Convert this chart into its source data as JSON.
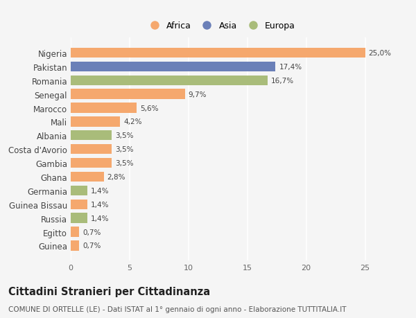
{
  "countries": [
    "Nigeria",
    "Pakistan",
    "Romania",
    "Senegal",
    "Marocco",
    "Mali",
    "Albania",
    "Costa d'Avorio",
    "Gambia",
    "Ghana",
    "Germania",
    "Guinea Bissau",
    "Russia",
    "Egitto",
    "Guinea"
  ],
  "values": [
    25.0,
    17.4,
    16.7,
    9.7,
    5.6,
    4.2,
    3.5,
    3.5,
    3.5,
    2.8,
    1.4,
    1.4,
    1.4,
    0.7,
    0.7
  ],
  "labels": [
    "25,0%",
    "17,4%",
    "16,7%",
    "9,7%",
    "5,6%",
    "4,2%",
    "3,5%",
    "3,5%",
    "3,5%",
    "2,8%",
    "1,4%",
    "1,4%",
    "1,4%",
    "0,7%",
    "0,7%"
  ],
  "continents": [
    "Africa",
    "Asia",
    "Europa",
    "Africa",
    "Africa",
    "Africa",
    "Europa",
    "Africa",
    "Africa",
    "Africa",
    "Europa",
    "Africa",
    "Europa",
    "Africa",
    "Africa"
  ],
  "colors": {
    "Africa": "#F5A86E",
    "Asia": "#6B80B8",
    "Europa": "#A9BC7A"
  },
  "bg_color": "#f5f5f5",
  "title": "Cittadini Stranieri per Cittadinanza",
  "subtitle": "COMUNE DI ORTELLE (LE) - Dati ISTAT al 1° gennaio di ogni anno - Elaborazione TUTTITALIA.IT",
  "xlim": [
    0,
    26.5
  ],
  "xticks": [
    0,
    5,
    10,
    15,
    20,
    25
  ],
  "bar_height": 0.72,
  "label_fontsize": 7.5,
  "title_fontsize": 10.5,
  "subtitle_fontsize": 7.5,
  "ytick_fontsize": 8.5,
  "xtick_fontsize": 8
}
